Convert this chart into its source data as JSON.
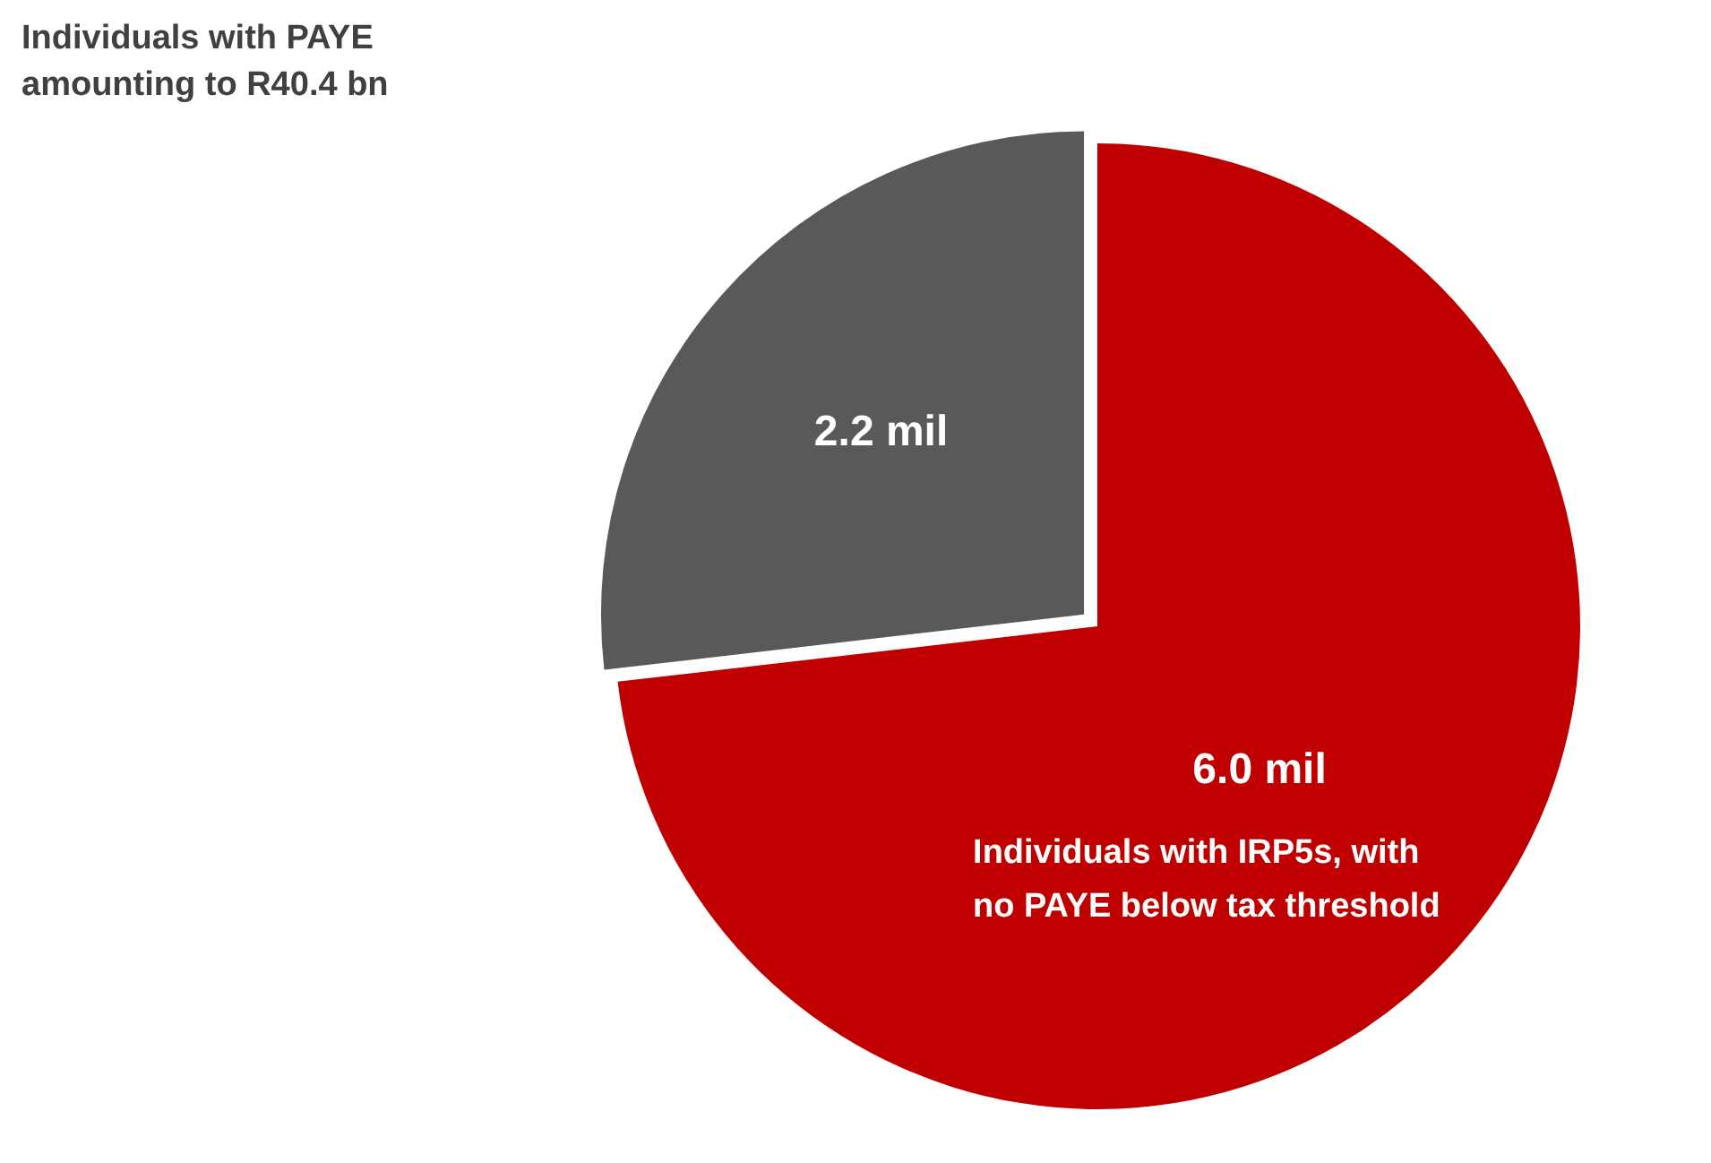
{
  "chart_data": {
    "type": "pie",
    "categories": [
      "Individuals with PAYE amounting to R40.4 bn",
      "Individuals with IRP5s, with no PAYE below tax threshold"
    ],
    "values": [
      2.2,
      6.0
    ],
    "value_labels": [
      "2.2 mil",
      "6.0 mil"
    ],
    "colors": [
      "#595959",
      "#c00000"
    ],
    "legend": false
  }
}
